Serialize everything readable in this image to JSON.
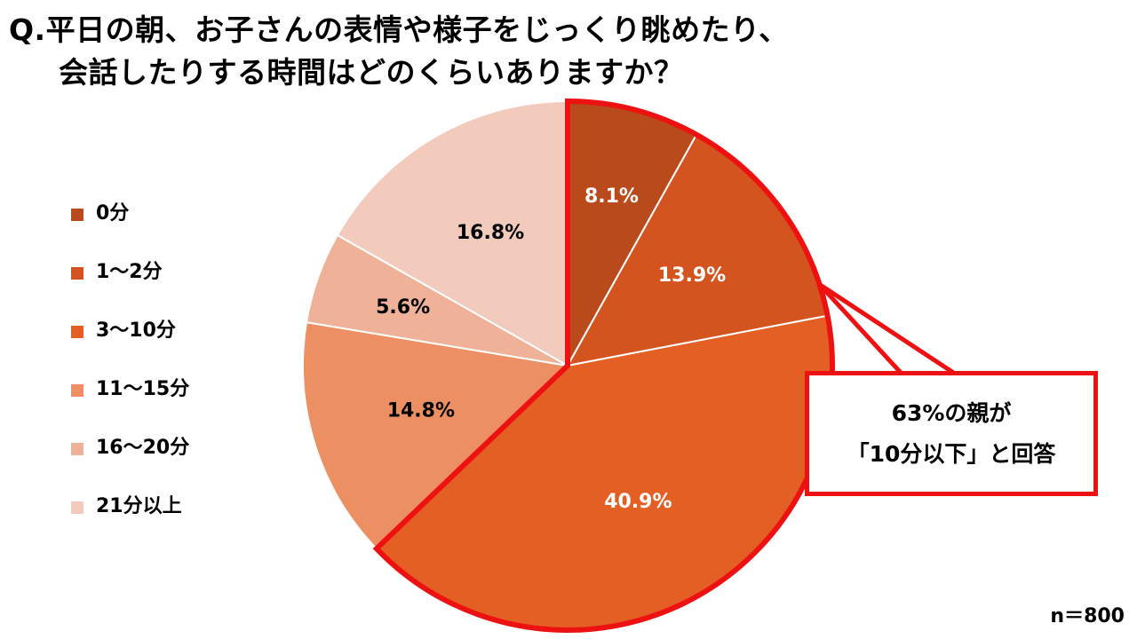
{
  "title": {
    "line1": "Q.平日の朝、お子さんの表情や様子をじっくり眺めたり、",
    "line2": "会話したりする時間はどのくらいありますか？"
  },
  "chart_data": {
    "type": "pie",
    "categories": [
      "0分",
      "1～2分",
      "3～10分",
      "11～15分",
      "16～20分",
      "21分以上"
    ],
    "values": [
      8.1,
      13.9,
      40.9,
      14.8,
      5.6,
      16.8
    ],
    "labels": [
      "8.1%",
      "13.9%",
      "40.9%",
      "14.8%",
      "5.6%",
      "16.8%"
    ],
    "colors": [
      "#b94a1b",
      "#d3541f",
      "#e45f24",
      "#ec9064",
      "#efb197",
      "#f3cbbd"
    ],
    "label_colors": [
      "#ffffff",
      "#ffffff",
      "#ffffff",
      "#000000",
      "#000000",
      "#000000"
    ],
    "start_angle_deg": 0,
    "direction": "clockwise",
    "highlight": {
      "series_indices": [
        0,
        1,
        2
      ],
      "outline_color": "#ee1111"
    },
    "legend_position": "left"
  },
  "callout": {
    "line1": "63%の親が",
    "line2": "「10分以下」と回答",
    "border_color": "#ee1111"
  },
  "sample_size": "n＝800"
}
